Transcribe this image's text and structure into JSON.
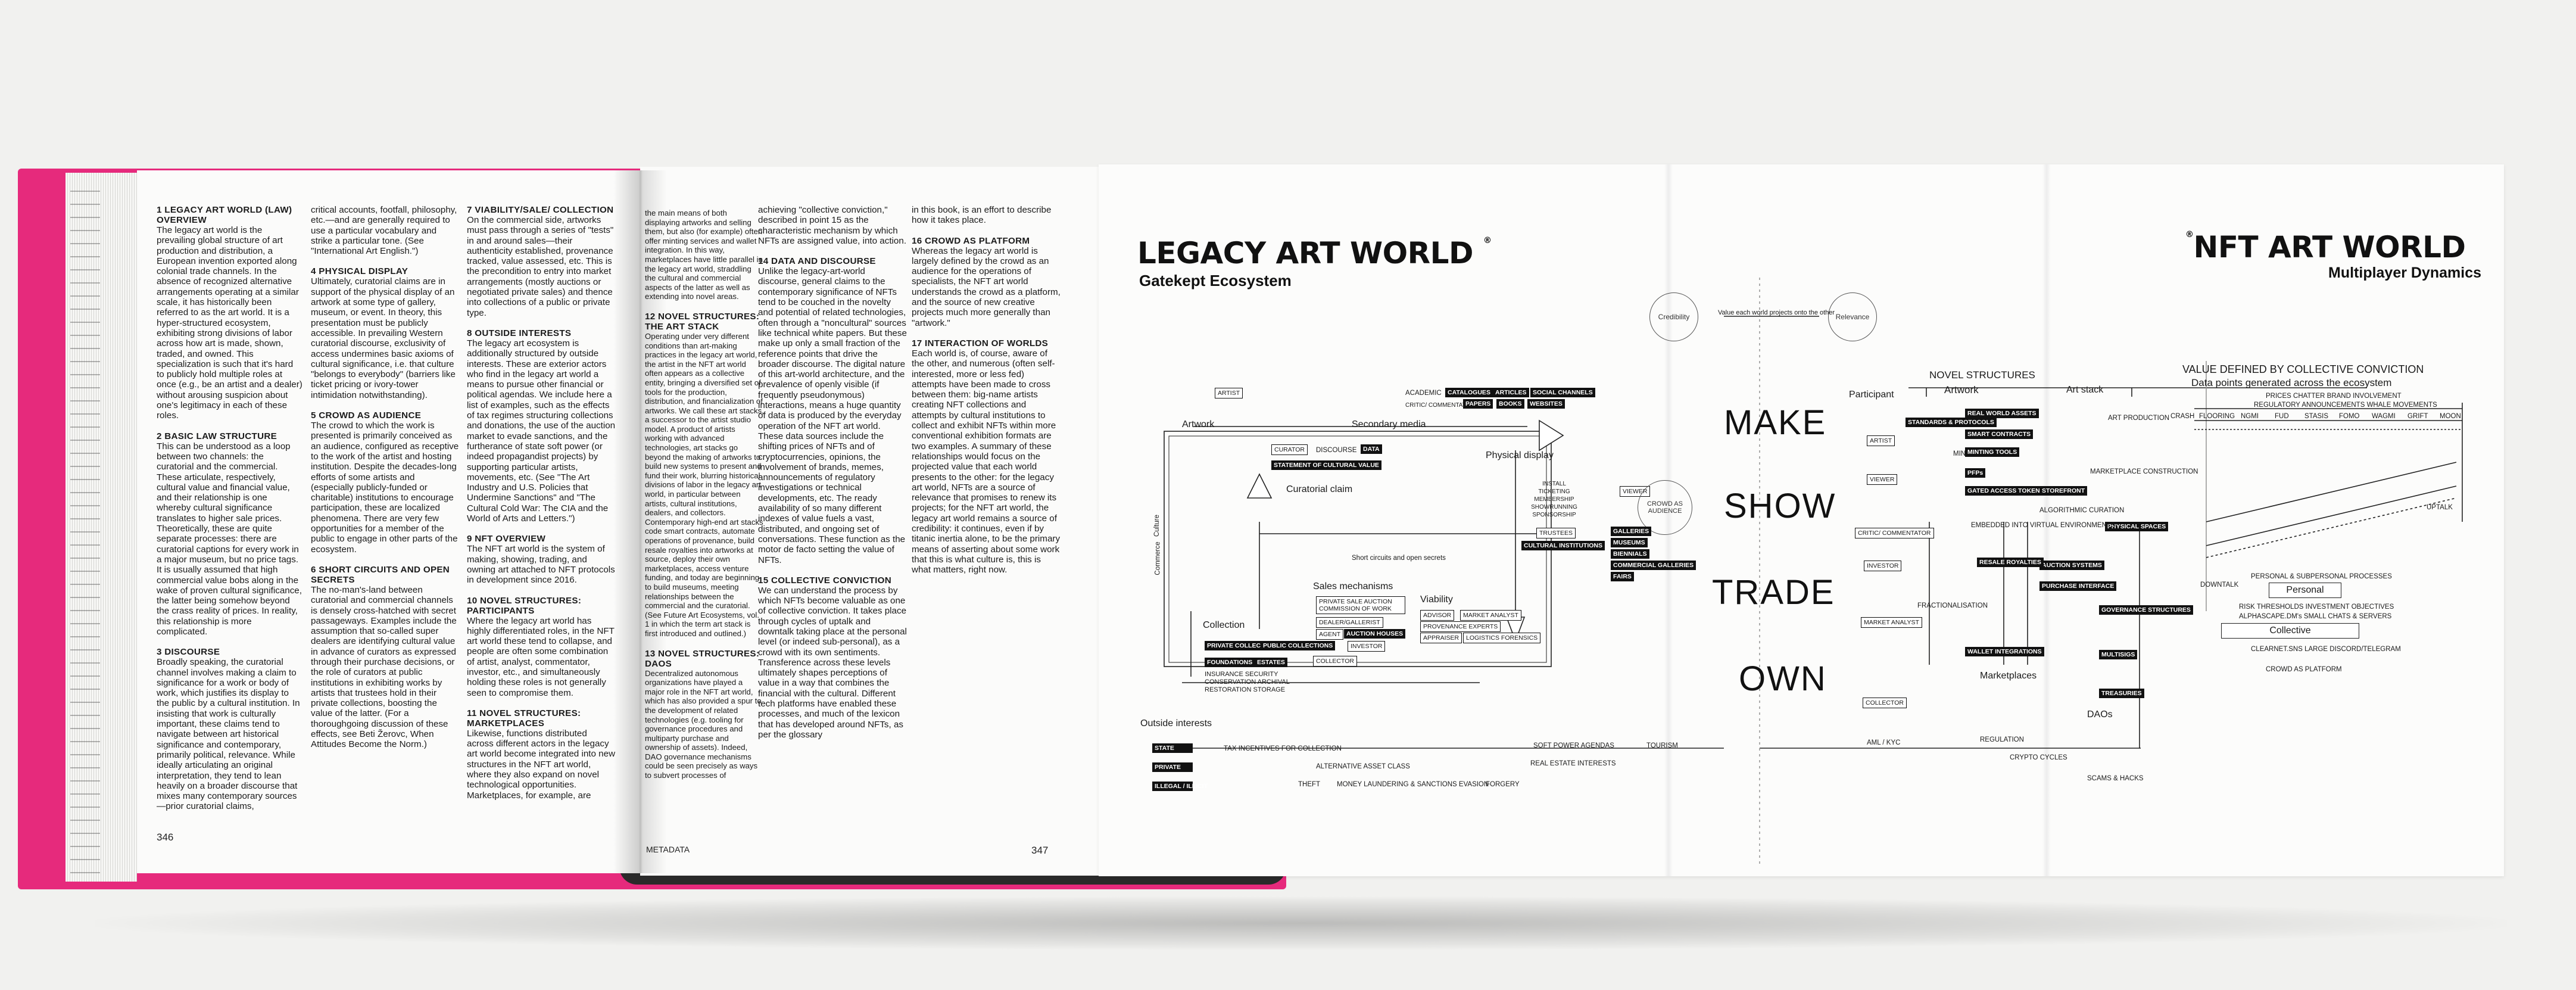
{
  "left_page": {
    "page_number": "346",
    "col1": [
      {
        "h": "1 LEGACY ART WORLD (LAW) OVERVIEW",
        "t": "The legacy art world is the prevailing global structure of art production and distribution, a European invention exported along colonial trade channels. In the absence of recognized alternative arrangements operating at a similar scale, it has historically been referred to as the art world. It is a hyper-structured ecosystem, exhibiting strong divisions of labor across how art is made, shown, traded, and owned. This specialization is such that it's hard to publicly hold multiple roles at once (e.g., be an artist and a dealer) without arousing suspicion about one's legitimacy in each of these roles."
      },
      {
        "h": "2 BASIC LAW STRUCTURE",
        "t": "This can be understood as a loop between two channels: the curatorial and the commercial. These articulate, respectively, cultural value and financial value, and their relationship is one whereby cultural significance translates to higher sale prices. Theoretically, these are quite separate processes: there are curatorial captions for every work in a major museum, but no price tags. It is usually assumed that high commercial value bobs along in the wake of proven cultural significance, the latter being somehow beyond the crass reality of prices. In reality, this relationship is more complicated."
      },
      {
        "h": "3 DISCOURSE",
        "t": "Broadly speaking, the curatorial channel involves making a claim to significance for a work or body of work, which justifies its display to the public by a cultural institution. In insisting that work is culturally important, these claims tend to navigate between art historical significance and contemporary, primarily political, relevance. While ideally articulating an original interpretation, they tend to lean heavily on a broader discourse that mixes many contemporary sources—prior curatorial claims,"
      }
    ],
    "col2": [
      {
        "h": "",
        "t": "critical accounts, footfall, philosophy, etc.—and are generally required to use a particular vocabulary and strike a particular tone. (See \"International Art English.\")"
      },
      {
        "h": "4 PHYSICAL DISPLAY",
        "t": "Ultimately, curatorial claims are in support of the physical display of an artwork at some type of gallery, museum, or event. In theory, this presentation must be publicly accessible. In prevailing Western curatorial discourse, exclusivity of access undermines basic axioms of cultural significance, i.e. that culture \"belongs to everybody\" (barriers like ticket pricing or ivory-tower intimidation notwithstanding)."
      },
      {
        "h": "5 CROWD AS AUDIENCE",
        "t": "The crowd to which the work is presented is primarily conceived as an audience, configured as receptive to the work of the artist and hosting institution. Despite the decades-long efforts of some artists and (especially publicly-funded or charitable) institutions to encourage participation, these are localized phenomena. There are very few opportunities for a member of the public to engage in other parts of the ecosystem."
      },
      {
        "h": "6 SHORT CIRCUITS AND OPEN SECRETS",
        "t": "The no-man's-land between curatorial and commercial channels is densely cross-hatched with secret passageways. Examples include the assumption that so-called super dealers are identifying cultural value in advance of curators as expressed through their purchase decisions, or the role of curators at public institutions in exhibiting works by artists that trustees hold in their private collections, boosting the value of the latter. (For a thoroughgoing discussion of these effects, see Beti Žerovc, When Attitudes Become the Norm.)"
      }
    ]
  },
  "mid_page": {
    "page_number": "347",
    "footer_label": "METADATA",
    "col1": [
      {
        "h": "7 VIABILITY/SALE/ COLLECTION",
        "t": "On the commercial side, artworks must pass through a series of \"tests\" in and around sales—their authenticity established, provenance tracked, value assessed, etc. This is the precondition to entry into market arrangements (mostly auctions or negotiated private sales) and thence into collections of a public or private type."
      },
      {
        "h": "8 OUTSIDE INTERESTS",
        "t": "The legacy art ecosystem is additionally structured by outside interests. These are exterior actors who find in the legacy art world a means to pursue other financial or political agendas. We include here a list of examples, such as the effects of tax regimes structuring collections and donations, the use of the auction market to evade sanctions, and the furtherance of state soft power (or indeed propagandist projects) by supporting particular artists, movements, etc. (See \"The Art Industry and U.S. Policies that Undermine Sanctions\" and \"The Cultural Cold War: The CIA and the World of Arts and Letters.\")"
      },
      {
        "h": "9 NFT OVERVIEW",
        "t": "The NFT art world is the system of making, showing, trading, and owning art attached to NFT protocols in development since 2016."
      },
      {
        "h": "10 NOVEL STRUCTURES: PARTICIPANTS",
        "t": "Where the legacy art world has highly differentiated roles, in the NFT art world these tend to collapse, and people are often some combination of artist, analyst, commentator, investor, etc., and simultaneously holding these roles is not generally seen to compromise them."
      },
      {
        "h": "11 NOVEL STRUCTURES: MARKETPLACES",
        "t": "Likewise, functions distributed across different actors in the legacy art world become integrated into new structures in the NFT art world, where they also expand on novel technological opportunities. Marketplaces, for example, are"
      }
    ],
    "col2": [
      {
        "h": "",
        "t": "the main means of both displaying artworks and selling them, but also (for example) often offer minting services and wallet integration. In this way, marketplaces have little parallel in the legacy art world, straddling the cultural and commercial aspects of the latter as well as extending into novel areas."
      },
      {
        "h": "12 NOVEL STRUCTURES: THE ART STACK",
        "t": "Operating under very different conditions than art-making practices in the legacy art world, the artist in the NFT art world often appears as a collective entity, bringing a diversified set of tools for the production, distribution, and financialization of artworks. We call these art stacks, a successor to the artist studio model. A product of artists working with advanced technologies, art stacks go beyond the making of artworks to build new systems to present and fund their work, blurring historical divisions of labor in the legacy art world, in particular between artists, cultural institutions, dealers, and collectors. Contemporary high-end art stacks code smart contracts, automate operations of provenance, build resale royalties into artworks at source, deploy their own marketplaces, access venture funding, and today are beginning to build museums, meeting relationships between the commercial and the curatorial. (See Future Art Ecosystems, vol. 1 in which the term art stack is first introduced and outlined.)"
      },
      {
        "h": "13 NOVEL STRUCTURES: DAOs",
        "t": "Decentralized autonomous organizations have played a major role in the NFT art world, which has also provided a spur to the development of related technologies (e.g. tooling for governance procedures and multiparty purchase and ownership of assets). Indeed, DAO governance mechanisms could be seen precisely as ways to subvert processes of"
      }
    ],
    "col3": [
      {
        "h": "",
        "t": "achieving \"collective conviction,\" described in point 15 as the characteristic mechanism by which NFTs are assigned value, into action."
      },
      {
        "h": "14 DATA AND DISCOURSE",
        "t": "Unlike the legacy-art-world discourse, general claims to the contemporary significance of NFTs tend to be couched in the novelty and potential of related technologies, often through a \"noncultural\" sources like technical white papers. But these make up only a small fraction of the reference points that drive the broader discourse. The digital nature of this art-world architecture, and the prevalence of openly visible (if frequently pseudonymous) interactions, means a huge quantity of data is produced by the everyday operation of the NFT art world. These data sources include the shifting prices of NFTs and of cryptocurrencies, opinions, the involvement of brands, memes, announcements of regulatory investigations or technical developments, etc. The ready availability of so many different indexes of value fuels a vast, distributed, and ongoing set of conversations. These function as the motor de facto setting the value of NFTs."
      },
      {
        "h": "15 COLLECTIVE CONVICTION",
        "t": "We can understand the process by which NFTs become valuable as one of collective conviction. It takes place through cycles of uptalk and downtalk taking place at the personal level (or indeed sub-personal), as a crowd with its own sentiments. Transference across these levels ultimately shapes perceptions of value in a way that combines the financial with the cultural. Different tech platforms have enabled these processes, and much of the lexicon that has developed around NFTs, as per the glossary"
      }
    ],
    "col4": [
      {
        "h": "",
        "t": "in this book, is an effort to describe how it takes place."
      },
      {
        "h": "16 CROWD AS PLATFORM",
        "t": "Whereas the legacy art world is largely defined by the crowd as an audience for the operations of specialists, the NFT art world understands the crowd as a platform, and the source of new creative projects much more generally than \"artwork.\""
      },
      {
        "h": "17 INTERACTION OF WORLDS",
        "t": "Each world is, of course, aware of the other, and numerous (often self-interested, more or less fed) attempts have been made to cross between them: big-name artists creating NFT collections and attempts by cultural institutions to collect and exhibit NFTs within more conventional exhibition formats are two examples. A summary of these relationships would focus on the projected value that each world presents to the other: for the legacy art world, NFTs are a source of relevance that promises to renew its projects; for the NFT art world, the legacy art world remains a source of credibility: it continues, even if by titanic inertia alone, to be the primary means of asserting about some work that this is what culture is, this is what matters, right now."
      }
    ]
  },
  "diagram": {
    "legacy_title": "LEGACY ART WORLD",
    "legacy_sub": "Gatekept Ecosystem",
    "nft_title": "NFT ART WORLD",
    "nft_sub": "Multiplayer Dynamics",
    "circle_mark": "®",
    "big_words": [
      "MAKE",
      "SHOW",
      "TRADE",
      "OWN"
    ],
    "credibility": "Credibility",
    "relevance": "Relevance",
    "value_each": "Value each world projects onto the other",
    "artist_box": "ARTIST",
    "artwork": "Artwork",
    "secondary_media": "Secondary media",
    "academic": "ACADEMIC",
    "critic": "CRITIC/ COMMENTATOR",
    "media_tags": [
      "CATALOGUES",
      "ARTICLES",
      "SOCIAL CHANNELS",
      "PAPERS",
      "BOOKS",
      "WEBSITES"
    ],
    "curator": "CURATOR",
    "discourse": "DISCOURSE",
    "data": "DATA",
    "statement": "STATEMENT OF CULTURAL VALUE",
    "curatorial_claim": "Curatorial claim",
    "physical_display": "Physical display",
    "display_list": "INSTALL TICKETING MEMBERSHIP SHOWRUNNING SPONSORSHIP",
    "trustees": "TRUSTEES",
    "cultural_inst": "CULTURAL INSTITUTIONS",
    "viewer": "VIEWER",
    "crowd_audience": "CROWD AS AUDIENCE",
    "venues": [
      "GALLERIES",
      "MUSEUMS",
      "BIENNIALS",
      "COMMERCIAL GALLERIES",
      "FAIRS"
    ],
    "short_circuits": "Short circuits and open secrets",
    "sales": "Sales mechanisms",
    "sales_box": "PRIVATE SALE AUCTION COMMISSION OF WORK",
    "dealer": "DEALER/GALLERIST",
    "agent": "AGENT",
    "auction_houses": "AUCTION HOUSES",
    "investor": "INVESTOR",
    "viability": "Viability",
    "viability_tags": [
      "ADVISOR",
      "MARKET ANALYST",
      "PROVENANCE EXPERTS",
      "APPRAISER",
      "LOGISTICS FORENSICS"
    ],
    "collection": "Collection",
    "collector": "COLLECTOR",
    "coll_tags": [
      "PRIVATE COLLECTIONS",
      "PUBLIC COLLECTIONS",
      "FOUNDATIONS",
      "ESTATES"
    ],
    "coll_list": "INSURANCE SECURITY CONSERVATION ARCHIVAL RESTORATION STORAGE",
    "commerce": "Commerce",
    "culture": "Culture",
    "outside": "Outside interests",
    "outside_tags": [
      "STATE",
      "PRIVATE",
      "ILLEGAL / ILLICIT"
    ],
    "outside_labels": [
      "TAX INCENTIVES FOR COLLECTION",
      "ALTERNATIVE ASSET CLASS",
      "MONEY LAUNDERING & SANCTIONS EVASION",
      "FORGERY",
      "THEFT",
      "SOFT POWER AGENDAS",
      "TOURISM",
      "REAL ESTATE INTERESTS",
      "AML / KYC",
      "REGULATION",
      "CRYPTO CYCLES",
      "SCAMS & HACKS"
    ],
    "novel": "NOVEL STRUCTURES",
    "participant": "Participant",
    "nft_artwork": "Artwork",
    "art_stack": "Art stack",
    "participant_roles": [
      "ARTIST",
      "VIEWER",
      "CRITIC/ COMMENTATOR",
      "INVESTOR",
      "MARKET ANALYST",
      "COLLECTOR"
    ],
    "minting": "MINTING",
    "fractionalisation": "FRACTIONALISATION",
    "standards": "STANDARDS & PROTOCOLS",
    "stack_tags": [
      "REAL WORLD ASSETS",
      "SMART CONTRACTS",
      "MINTING TOOLS",
      "PFPs",
      "GATED ACCESS TOKENS",
      "STOREFRONT",
      "AUCTION SYSTEMS",
      "PURCHASE INTERFACE",
      "WALLET INTEGRATIONS",
      "GOVERNANCE STRUCTURES",
      "MULTISIGS",
      "TREASURIES",
      "PHYSICAL SPACES",
      "RESALE ROYALTIES"
    ],
    "stack_labels": [
      "ART PRODUCTION",
      "MARKETPLACE CONSTRUCTION",
      "ALGORITHMIC CURATION",
      "EMBEDDED INTO VIRTUAL ENVIRONMENTS"
    ],
    "marketplaces": "Marketplaces",
    "daos": "DAOs",
    "value_header": "VALUE DEFINED BY COLLECTIVE CONVICTION",
    "datapoints": "Data points generated across the ecosystem",
    "dp_row1": "PRICES  CHATTER  BRAND INVOLVEMENT",
    "dp_row2": "REGULATORY ANNOUNCEMENTS  WHALE MOVEMENTS",
    "dp_row3": [
      "CRASH",
      "FLOORING",
      "NGMI",
      "FUD",
      "STASIS",
      "FOMO",
      "WAGMI",
      "GRIFT",
      "MOON"
    ],
    "uptalk": "UPTALK",
    "downtalk": "DOWNTALK",
    "personal_proc": "PERSONAL & SUBPERSONAL PROCESSES",
    "personal": "Personal",
    "risk": "RISK THRESHOLDS  INVESTMENT OBJECTIVES",
    "alpha": "ALPHASCAPE.DM's  SMALL CHATS & SERVERS",
    "collective": "Collective",
    "clearnet": "CLEARNET.SNS  LARGE DISCORD/TELEGRAM",
    "crowd_platform": "CROWD AS PLATFORM"
  },
  "colors": {
    "cover": "#e62a7c",
    "ink": "#111111",
    "paper": "#fbfbfa"
  }
}
